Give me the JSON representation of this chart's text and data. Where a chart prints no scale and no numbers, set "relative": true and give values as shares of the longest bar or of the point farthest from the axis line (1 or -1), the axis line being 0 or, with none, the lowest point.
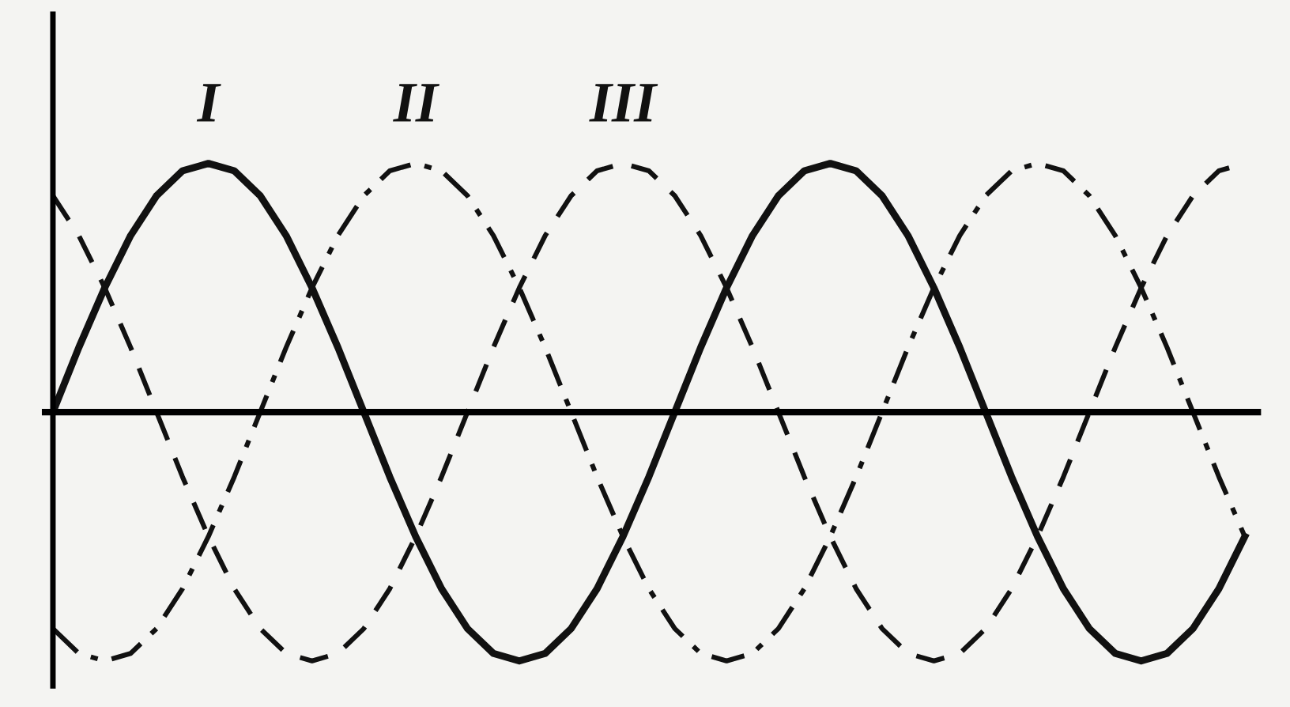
{
  "chart_data": {
    "type": "line",
    "relative": true,
    "categories": [
      null,
      null,
      null,
      null,
      null,
      null,
      null,
      null,
      null,
      null,
      null,
      null,
      null,
      null,
      null,
      null,
      null,
      null,
      null,
      null,
      null,
      null,
      null,
      null,
      null,
      null,
      null,
      null,
      null,
      null,
      null,
      null,
      null,
      null,
      null,
      null,
      null,
      null,
      null,
      null,
      null,
      null,
      null,
      null,
      null,
      null,
      null
    ],
    "series": [
      {
        "name": "I",
        "color": "#111111",
        "line_style": "solid",
        "values": [
          0,
          0.26,
          0.5,
          0.71,
          0.87,
          0.97,
          1,
          0.97,
          0.87,
          0.71,
          0.5,
          0.26,
          0,
          -0.26,
          -0.5,
          -0.71,
          -0.87,
          -0.97,
          -1,
          -0.97,
          -0.87,
          -0.71,
          -0.5,
          -0.26,
          0,
          0.26,
          0.5,
          0.71,
          0.87,
          0.97,
          1,
          0.97,
          0.87,
          0.71,
          0.5,
          0.26,
          0,
          -0.26,
          -0.5,
          -0.71,
          -0.87,
          -0.97,
          -1,
          -0.97,
          -0.87,
          -0.71,
          -0.5
        ]
      },
      {
        "name": "II",
        "color": "#111111",
        "line_style": "dashdot",
        "values": [
          -0.87,
          -0.97,
          -1,
          -0.97,
          -0.87,
          -0.71,
          -0.5,
          -0.26,
          0,
          0.26,
          0.5,
          0.71,
          0.87,
          0.97,
          1,
          0.97,
          0.87,
          0.71,
          0.5,
          0.26,
          0,
          -0.26,
          -0.5,
          -0.71,
          -0.87,
          -0.97,
          -1,
          -0.97,
          -0.87,
          -0.71,
          -0.5,
          -0.26,
          0,
          0.26,
          0.5,
          0.71,
          0.87,
          0.97,
          1,
          0.97,
          0.87,
          0.71,
          0.5,
          0.26,
          0,
          -0.26,
          -0.5
        ]
      },
      {
        "name": "III",
        "color": "#111111",
        "line_style": "dashed",
        "values": [
          0.87,
          0.71,
          0.5,
          0.26,
          0,
          -0.26,
          -0.5,
          -0.71,
          -0.87,
          -0.97,
          -1,
          -0.97,
          -0.87,
          -0.71,
          -0.5,
          -0.26,
          0,
          0.26,
          0.5,
          0.71,
          0.87,
          0.97,
          1,
          0.97,
          0.87,
          0.71,
          0.5,
          0.26,
          0,
          -0.26,
          -0.5,
          -0.71,
          -0.87,
          -0.97,
          -1,
          -0.97,
          -0.87,
          -0.71,
          -0.5,
          -0.26,
          0,
          0.26,
          0.5,
          0.71,
          0.87,
          0.97,
          1
        ]
      }
    ]
  }
}
